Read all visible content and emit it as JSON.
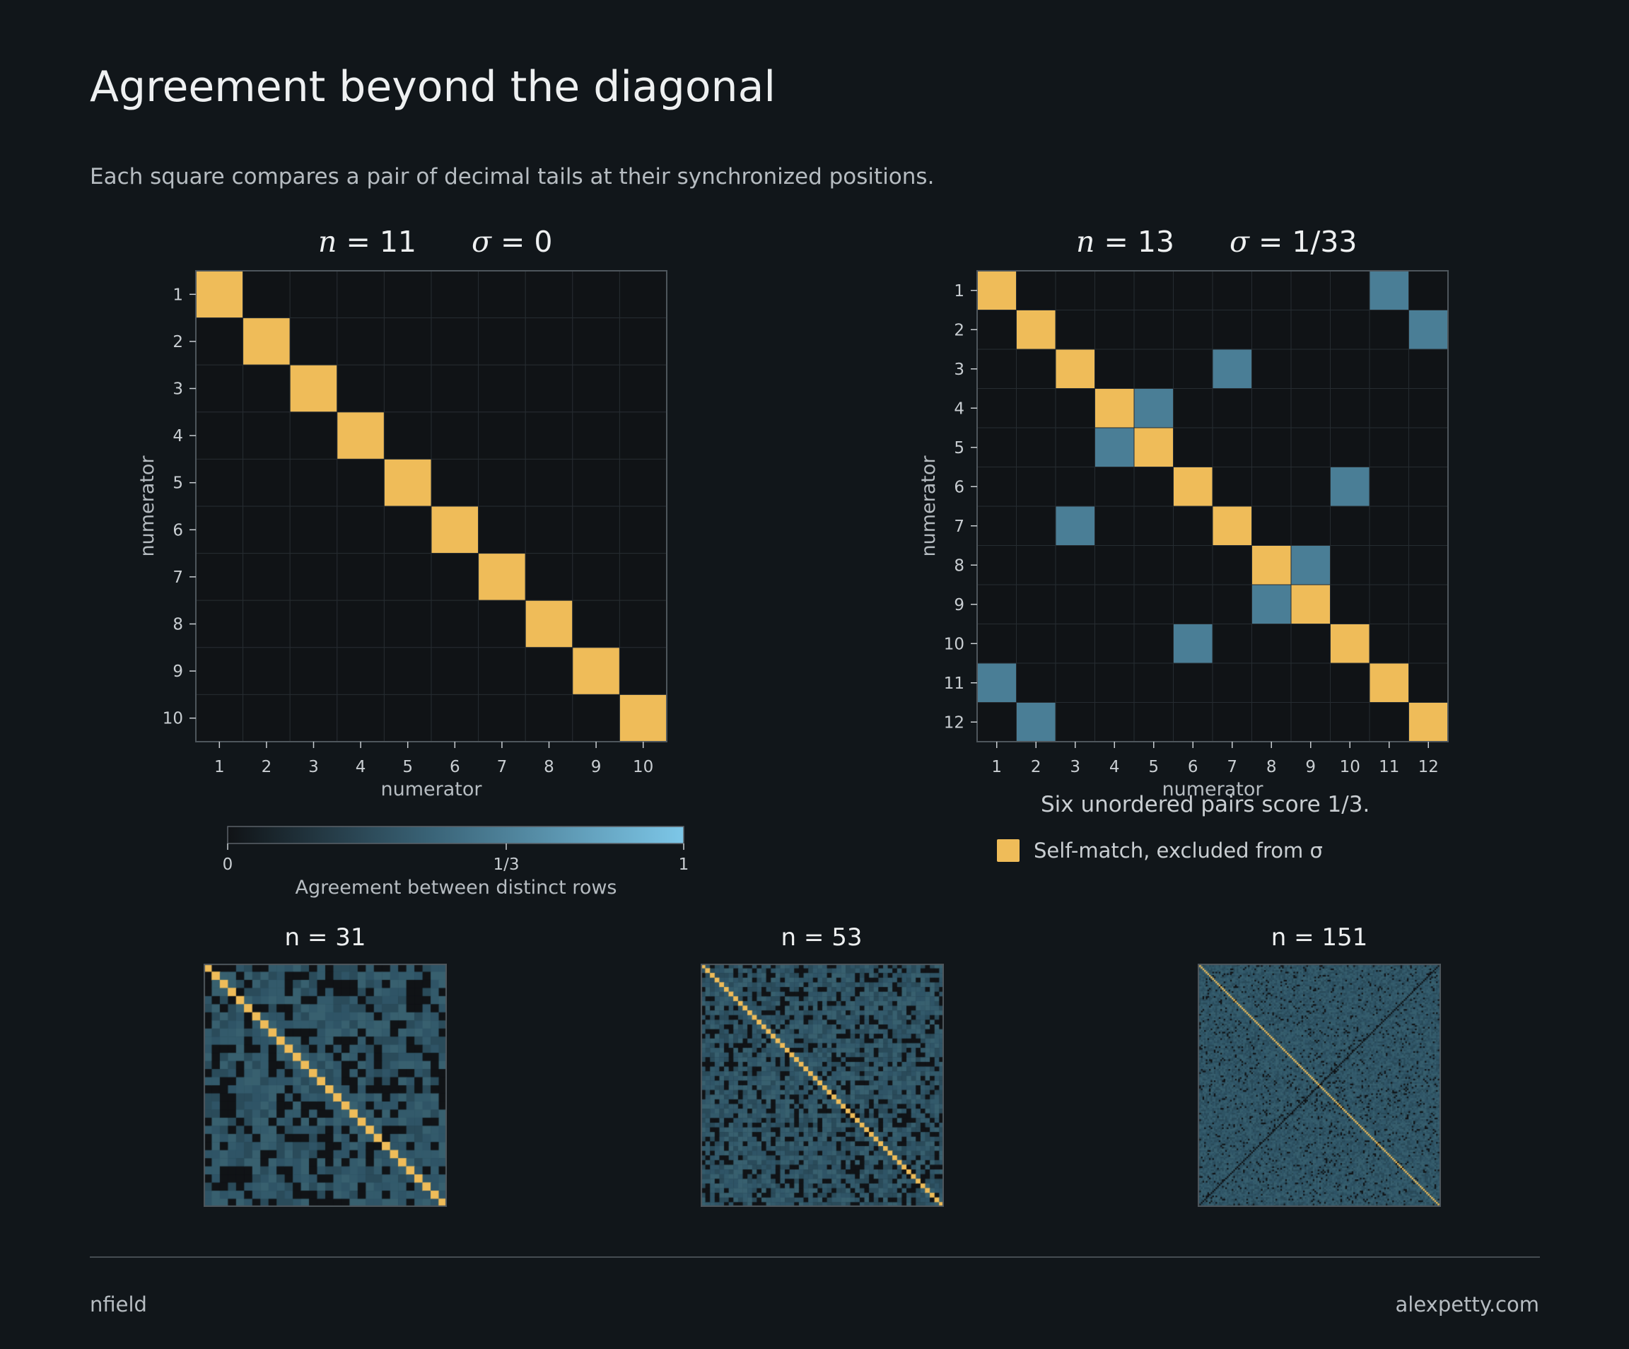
{
  "header": {
    "title": "Agreement beyond the diagonal",
    "subtitle": "Each square compares a pair of decimal tails at their synchronized positions."
  },
  "colors": {
    "background": "#11161a",
    "self_match": "#efbc59",
    "agreement": "#4a7e96",
    "empty_cell": "#101316",
    "gridline": "#262c31",
    "colorbar_low": "#101316",
    "colorbar_high": "#7dc7e8"
  },
  "chart_data": [
    {
      "type": "heatmap",
      "title_n": "n = 11",
      "title_sigma": "σ = 0",
      "n_label": "n",
      "n_value": "11",
      "sigma_label": "σ",
      "sigma_value": "0",
      "xlabel": "numerator",
      "ylabel": "numerator",
      "x": [
        1,
        2,
        3,
        4,
        5,
        6,
        7,
        8,
        9,
        10
      ],
      "y": [
        1,
        2,
        3,
        4,
        5,
        6,
        7,
        8,
        9,
        10
      ],
      "self_match_diagonal": true,
      "off_diagonal_pairs": []
    },
    {
      "type": "heatmap",
      "title_n": "n = 13",
      "title_sigma": "σ = 1/33",
      "n_label": "n",
      "n_value": "13",
      "sigma_label": "σ",
      "sigma_value": "1/33",
      "xlabel": "numerator",
      "ylabel": "numerator",
      "x": [
        1,
        2,
        3,
        4,
        5,
        6,
        7,
        8,
        9,
        10,
        11,
        12
      ],
      "y": [
        1,
        2,
        3,
        4,
        5,
        6,
        7,
        8,
        9,
        10,
        11,
        12
      ],
      "self_match_diagonal": true,
      "off_diagonal_pairs": [
        [
          1,
          11
        ],
        [
          2,
          12
        ],
        [
          3,
          7
        ],
        [
          4,
          5
        ],
        [
          6,
          10
        ],
        [
          8,
          9
        ]
      ],
      "off_diagonal_value": 0.3333,
      "note": "Six unordered pairs score 1/3."
    },
    {
      "type": "heatmap",
      "title": "n = 31",
      "size": 30,
      "self_match_diagonal": true,
      "values": "mixed agreement between 0 and 1/3"
    },
    {
      "type": "heatmap",
      "title": "n = 53",
      "size": 52,
      "self_match_diagonal": true,
      "values": "mixed agreement between 0 and 1/3"
    },
    {
      "type": "heatmap",
      "title": "n = 151",
      "size": 150,
      "self_match_diagonal": true,
      "values": "mostly agreement near 1/3 with sparse zero cells and a dark anti-diagonal"
    }
  ],
  "colorbar": {
    "label": "Agreement between distinct rows",
    "ticks": [
      "0",
      "1/3",
      "1"
    ],
    "range": [
      0,
      1
    ]
  },
  "legend": {
    "self_match_label": "Self-match, excluded from σ"
  },
  "footer": {
    "left": "nfield",
    "right": "alexpetty.com"
  }
}
